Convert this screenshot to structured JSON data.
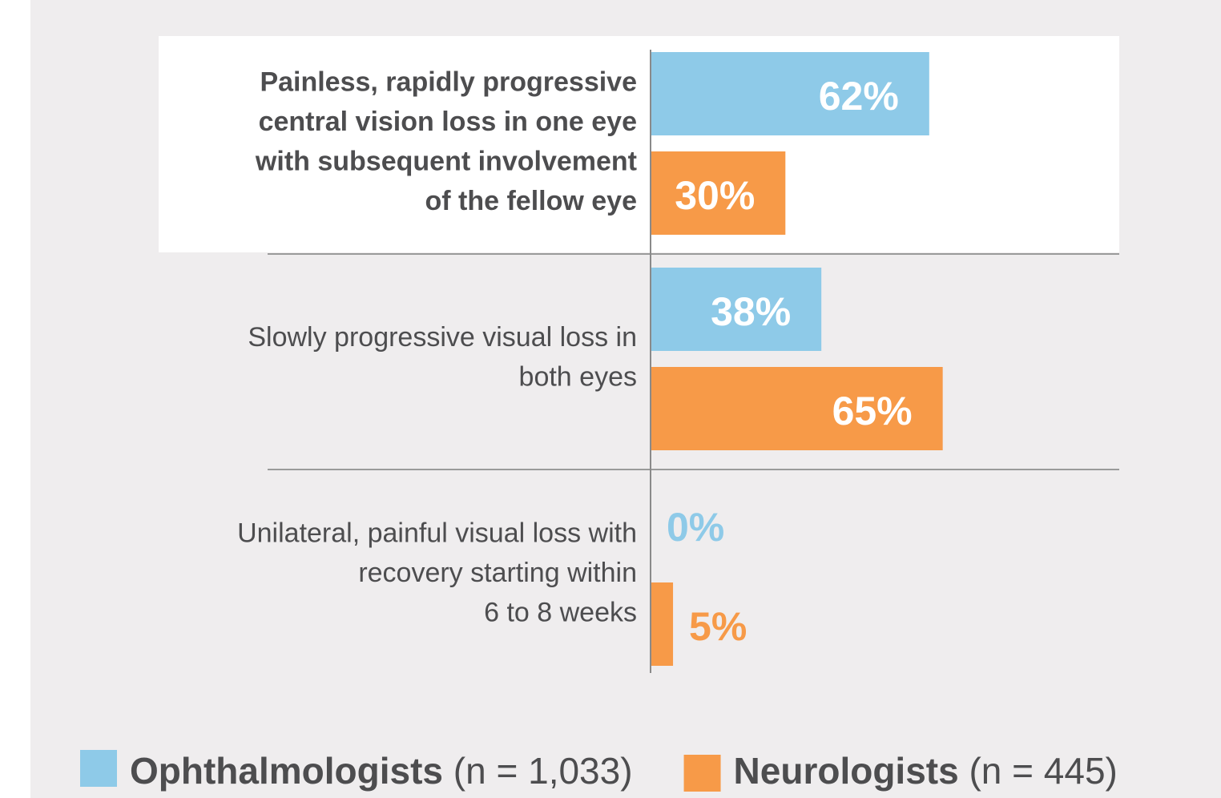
{
  "chart_data": {
    "type": "bar",
    "orientation": "horizontal",
    "categories": [
      [
        "Painless, rapidly progressive",
        "central vision loss in one eye",
        "with subsequent involvement",
        "of the fellow eye"
      ],
      [
        "Slowly progressive visual loss in",
        "both eyes"
      ],
      [
        "Unilateral, painful visual loss with",
        "recovery starting within",
        "6 to 8 weeks"
      ]
    ],
    "highlight_category": 0,
    "series": [
      {
        "name": "Ophthalmologists",
        "sample": "(n = 1,033)",
        "color": "#8ecae8",
        "values": [
          62,
          38,
          0
        ],
        "value_labels": [
          "62%",
          "38%",
          "0%"
        ]
      },
      {
        "name": "Neurologists",
        "sample": "(n = 445)",
        "color": "#f79a48",
        "values": [
          30,
          65,
          5
        ],
        "value_labels": [
          "30%",
          "65%",
          "5%"
        ]
      }
    ],
    "legend": "bottom"
  }
}
